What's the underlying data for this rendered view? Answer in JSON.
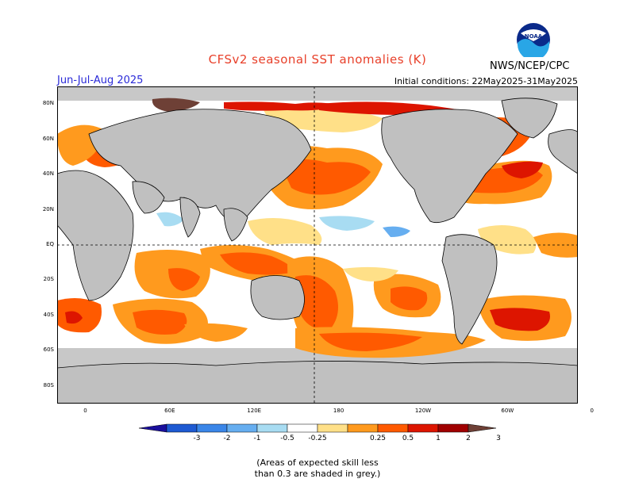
{
  "title": "CFSv2 seasonal SST anomalies (K)",
  "season": "Jun-Jul-Aug 2025",
  "initial_conditions": "Initial conditions: 22May2025-31May2025",
  "agency": "NWS/NCEP/CPC",
  "logo_text": "NOAA",
  "lat_labels": [
    "80N",
    "60N",
    "40N",
    "20N",
    "EQ",
    "20S",
    "40S",
    "60S",
    "80S"
  ],
  "lon_labels": [
    "0",
    "60E",
    "120E",
    "180",
    "120W",
    "60W",
    "0"
  ],
  "colorbar": {
    "ticks": [
      "-3",
      "-2",
      "-1",
      "-0.5",
      "-0.25",
      "0.25",
      "0.5",
      "1",
      "2",
      "3"
    ],
    "colors": [
      "#1a0f9c",
      "#1e5ad2",
      "#3a86e8",
      "#66aef0",
      "#a8dcf2",
      "#ffffff",
      "#ffe088",
      "#ff9a1e",
      "#ff5a00",
      "#dd1500",
      "#a00000",
      "#6e4036"
    ]
  },
  "colors": {
    "land": "#c0c0c0",
    "low_skill": "#c8c8c8",
    "ocean_neutral": "#ffffff",
    "title": "#e8402a",
    "season": "#2a2ad8"
  },
  "note_lines": [
    "(Areas of expected skill less",
    "than 0.3 are shaded in grey.)"
  ]
}
